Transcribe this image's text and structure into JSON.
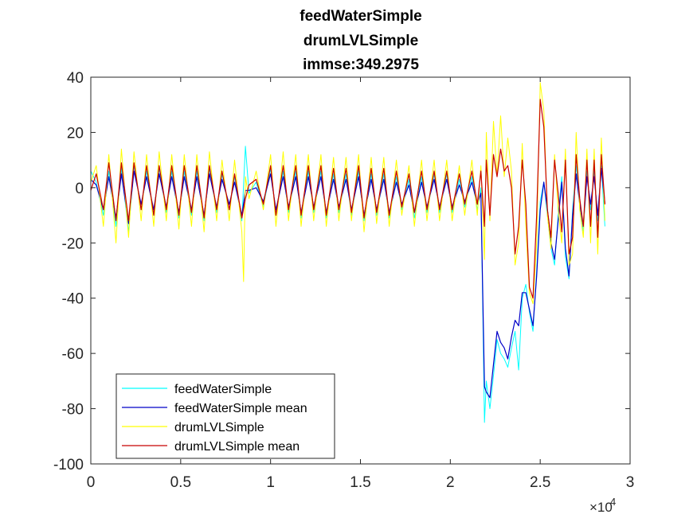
{
  "chart_data": {
    "type": "line",
    "title": [
      "feedWaterSimple",
      "drumLVLSimple",
      "immse:349.2975"
    ],
    "xlim": [
      0,
      3
    ],
    "ylim": [
      -100,
      40
    ],
    "x_exponent_base": "×10",
    "x_exponent_power": "4",
    "xticks": [
      0,
      0.5,
      1,
      1.5,
      2,
      2.5,
      3
    ],
    "xtick_labels": [
      "0",
      "0.5",
      "1",
      "1.5",
      "2",
      "2.5",
      "3"
    ],
    "yticks": [
      -100,
      -80,
      -60,
      -40,
      -20,
      0,
      20,
      40
    ],
    "ytick_labels": [
      "-100",
      "-80",
      "-60",
      "-40",
      "-20",
      "0",
      "20",
      "40"
    ],
    "legend_position": "bottom-left",
    "grid": false,
    "series": [
      {
        "name": "feedWaterSimple",
        "color": "#00ffff",
        "x": [
          0,
          0.03,
          0.07,
          0.1,
          0.14,
          0.17,
          0.21,
          0.24,
          0.28,
          0.31,
          0.35,
          0.38,
          0.42,
          0.45,
          0.49,
          0.52,
          0.56,
          0.59,
          0.63,
          0.66,
          0.7,
          0.73,
          0.77,
          0.8,
          0.84,
          0.86,
          0.88,
          0.92,
          0.96,
          1.0,
          1.03,
          1.07,
          1.1,
          1.14,
          1.17,
          1.21,
          1.24,
          1.28,
          1.31,
          1.35,
          1.38,
          1.42,
          1.45,
          1.49,
          1.52,
          1.56,
          1.59,
          1.63,
          1.66,
          1.7,
          1.73,
          1.77,
          1.8,
          1.84,
          1.87,
          1.91,
          1.94,
          1.98,
          2.01,
          2.05,
          2.08,
          2.12,
          2.15,
          2.17,
          2.19,
          2.2,
          2.22,
          2.24,
          2.26,
          2.28,
          2.3,
          2.32,
          2.34,
          2.36,
          2.38,
          2.4,
          2.42,
          2.44,
          2.46,
          2.48,
          2.5,
          2.52,
          2.54,
          2.56,
          2.58,
          2.6,
          2.62,
          2.64,
          2.66,
          2.68,
          2.7,
          2.72,
          2.74,
          2.76,
          2.78,
          2.8,
          2.82,
          2.84,
          2.86
        ],
        "y": [
          6,
          2,
          -10,
          6,
          -14,
          7,
          -16,
          8,
          -8,
          6,
          -10,
          7,
          -9,
          6,
          -11,
          6,
          -10,
          6,
          -12,
          7,
          -9,
          5,
          -8,
          4,
          -12,
          15,
          -2,
          2,
          -7,
          7,
          -10,
          6,
          -9,
          6,
          -11,
          6,
          -9,
          6,
          -11,
          5,
          -9,
          5,
          -10,
          6,
          -12,
          5,
          -10,
          5,
          -11,
          4,
          -8,
          3,
          -11,
          4,
          -9,
          5,
          -9,
          5,
          -9,
          3,
          -7,
          4,
          -8,
          0,
          -85,
          -70,
          -80,
          -68,
          -55,
          -60,
          -62,
          -65,
          -58,
          -52,
          -66,
          -40,
          -35,
          -45,
          -52,
          -30,
          -5,
          2,
          -10,
          -22,
          -28,
          -10,
          4,
          -25,
          -33,
          -8,
          8,
          -5,
          -16,
          6,
          -8,
          6,
          -12,
          8,
          -14
        ]
      },
      {
        "name": "feedWaterSimple mean",
        "color": "#0000c8",
        "x": [
          0,
          0.03,
          0.07,
          0.1,
          0.14,
          0.17,
          0.21,
          0.24,
          0.28,
          0.31,
          0.35,
          0.38,
          0.42,
          0.45,
          0.49,
          0.52,
          0.56,
          0.59,
          0.63,
          0.66,
          0.7,
          0.73,
          0.77,
          0.8,
          0.84,
          0.86,
          0.88,
          0.92,
          0.96,
          1.0,
          1.03,
          1.07,
          1.1,
          1.14,
          1.17,
          1.21,
          1.24,
          1.28,
          1.31,
          1.35,
          1.38,
          1.42,
          1.45,
          1.49,
          1.52,
          1.56,
          1.59,
          1.63,
          1.66,
          1.7,
          1.73,
          1.77,
          1.8,
          1.84,
          1.87,
          1.91,
          1.94,
          1.98,
          2.01,
          2.05,
          2.08,
          2.12,
          2.15,
          2.17,
          2.19,
          2.2,
          2.22,
          2.24,
          2.26,
          2.28,
          2.3,
          2.32,
          2.34,
          2.36,
          2.38,
          2.4,
          2.42,
          2.44,
          2.46,
          2.48,
          2.5,
          2.52,
          2.54,
          2.56,
          2.58,
          2.6,
          2.62,
          2.64,
          2.66,
          2.68,
          2.7,
          2.72,
          2.74,
          2.76,
          2.78,
          2.8,
          2.82,
          2.84,
          2.86
        ],
        "y": [
          3,
          1,
          -8,
          4,
          -11,
          5,
          -13,
          6,
          -6,
          4,
          -8,
          5,
          -7,
          4,
          -9,
          4,
          -8,
          4,
          -10,
          5,
          -7,
          3,
          -6,
          2,
          -10,
          -1,
          -1,
          0,
          -5,
          5,
          -8,
          4,
          -7,
          4,
          -9,
          4,
          -7,
          4,
          -9,
          3,
          -7,
          3,
          -8,
          4,
          -10,
          3,
          -8,
          3,
          -9,
          2,
          -6,
          1,
          -9,
          2,
          -7,
          3,
          -7,
          3,
          -7,
          1,
          -5,
          2,
          -6,
          -2,
          -72,
          -74,
          -76,
          -64,
          -52,
          -56,
          -58,
          -62,
          -54,
          -48,
          -50,
          -38,
          -38,
          -44,
          -50,
          -32,
          -8,
          2,
          -8,
          -20,
          -26,
          -12,
          2,
          -22,
          -32,
          -10,
          5,
          -6,
          -14,
          4,
          -6,
          4,
          -10,
          7,
          -6
        ]
      },
      {
        "name": "drumLVLSimple",
        "color": "#ffff00",
        "x": [
          0,
          0.03,
          0.07,
          0.1,
          0.14,
          0.17,
          0.21,
          0.24,
          0.28,
          0.31,
          0.35,
          0.38,
          0.42,
          0.45,
          0.49,
          0.52,
          0.56,
          0.59,
          0.63,
          0.66,
          0.7,
          0.73,
          0.77,
          0.8,
          0.84,
          0.85,
          0.86,
          0.88,
          0.92,
          0.96,
          1.0,
          1.03,
          1.07,
          1.1,
          1.14,
          1.17,
          1.21,
          1.24,
          1.28,
          1.31,
          1.35,
          1.38,
          1.42,
          1.45,
          1.49,
          1.52,
          1.56,
          1.59,
          1.63,
          1.66,
          1.7,
          1.73,
          1.77,
          1.8,
          1.84,
          1.87,
          1.91,
          1.94,
          1.98,
          2.01,
          2.05,
          2.08,
          2.12,
          2.15,
          2.17,
          2.19,
          2.2,
          2.22,
          2.24,
          2.26,
          2.28,
          2.3,
          2.32,
          2.34,
          2.36,
          2.38,
          2.4,
          2.42,
          2.44,
          2.46,
          2.48,
          2.5,
          2.52,
          2.54,
          2.56,
          2.58,
          2.6,
          2.62,
          2.64,
          2.66,
          2.68,
          2.7,
          2.72,
          2.74,
          2.76,
          2.78,
          2.8,
          2.82,
          2.84,
          2.86
        ],
        "y": [
          2,
          8,
          -14,
          12,
          -20,
          14,
          -18,
          13,
          -12,
          12,
          -14,
          13,
          -12,
          12,
          -15,
          12,
          -14,
          12,
          -16,
          13,
          -12,
          10,
          -12,
          10,
          -16,
          -34,
          4,
          -4,
          6,
          -8,
          12,
          -14,
          13,
          -12,
          12,
          -14,
          12,
          -12,
          12,
          -14,
          11,
          -12,
          11,
          -12,
          12,
          -16,
          11,
          -13,
          11,
          -14,
          10,
          -10,
          8,
          -14,
          10,
          -12,
          10,
          -12,
          10,
          -12,
          8,
          -10,
          10,
          -10,
          8,
          -26,
          20,
          -12,
          24,
          4,
          26,
          4,
          18,
          6,
          -28,
          -20,
          16,
          -14,
          -38,
          -42,
          -20,
          38,
          28,
          -10,
          -22,
          12,
          -8,
          -20,
          14,
          -28,
          -24,
          20,
          -8,
          -18,
          14,
          -20,
          14,
          -24,
          18,
          -12
        ]
      },
      {
        "name": "drumLVLSimple mean",
        "color": "#c80000",
        "x": [
          0,
          0.03,
          0.07,
          0.1,
          0.14,
          0.17,
          0.21,
          0.24,
          0.28,
          0.31,
          0.35,
          0.38,
          0.42,
          0.45,
          0.49,
          0.52,
          0.56,
          0.59,
          0.63,
          0.66,
          0.7,
          0.73,
          0.77,
          0.8,
          0.84,
          0.86,
          0.88,
          0.92,
          0.96,
          1.0,
          1.03,
          1.07,
          1.1,
          1.14,
          1.17,
          1.21,
          1.24,
          1.28,
          1.31,
          1.35,
          1.38,
          1.42,
          1.45,
          1.49,
          1.52,
          1.56,
          1.59,
          1.63,
          1.66,
          1.7,
          1.73,
          1.77,
          1.8,
          1.84,
          1.87,
          1.91,
          1.94,
          1.98,
          2.01,
          2.05,
          2.08,
          2.12,
          2.15,
          2.17,
          2.19,
          2.2,
          2.22,
          2.24,
          2.26,
          2.28,
          2.3,
          2.32,
          2.34,
          2.36,
          2.38,
          2.4,
          2.42,
          2.44,
          2.46,
          2.48,
          2.5,
          2.52,
          2.54,
          2.56,
          2.58,
          2.6,
          2.62,
          2.64,
          2.66,
          2.68,
          2.7,
          2.72,
          2.74,
          2.76,
          2.78,
          2.8,
          2.82,
          2.84,
          2.86
        ],
        "y": [
          -1,
          5,
          -8,
          9,
          -12,
          9,
          -12,
          9,
          -8,
          8,
          -10,
          8,
          -8,
          8,
          -10,
          8,
          -9,
          8,
          -11,
          8,
          -8,
          6,
          -8,
          5,
          -11,
          -4,
          1,
          3,
          -6,
          8,
          -10,
          8,
          -8,
          8,
          -10,
          8,
          -8,
          8,
          -10,
          7,
          -8,
          7,
          -9,
          8,
          -11,
          7,
          -9,
          7,
          -10,
          6,
          -7,
          5,
          -9,
          6,
          -8,
          6,
          -8,
          6,
          -8,
          5,
          -6,
          6,
          -6,
          6,
          -14,
          10,
          -10,
          12,
          4,
          14,
          6,
          8,
          0,
          -24,
          -14,
          10,
          -6,
          -36,
          -40,
          -10,
          32,
          22,
          -8,
          -18,
          10,
          -2,
          -16,
          10,
          -24,
          -18,
          12,
          -4,
          -14,
          10,
          -14,
          10,
          -18,
          12,
          -6
        ]
      }
    ]
  }
}
